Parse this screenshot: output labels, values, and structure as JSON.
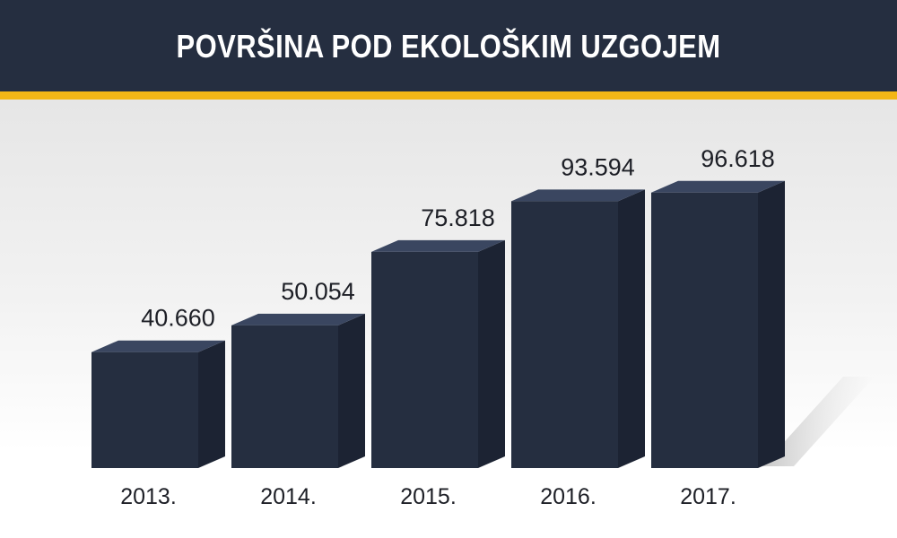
{
  "header": {
    "title": "POVRŠINA POD EKOLOŠKIM UZGOJEM"
  },
  "colors": {
    "header_bg": "#252e40",
    "accent_stripe": "#f3b616",
    "bar_front": "#252e40",
    "bar_top": "#3a4660",
    "bar_side": "#1c2333"
  },
  "chart_data": {
    "type": "bar",
    "title": "POVRŠINA POD EKOLOŠKIM UZGOJEM",
    "categories": [
      "2013.",
      "2014.",
      "2015.",
      "2016.",
      "2017."
    ],
    "values": [
      40660,
      50054,
      75818,
      93594,
      96618
    ],
    "value_labels": [
      "40.660",
      "50.054",
      "75.818",
      "93.594",
      "96.618"
    ],
    "xlabel": "",
    "ylabel": "",
    "ylim": [
      0,
      100000
    ],
    "grid": false,
    "legend": "none",
    "style": "3d"
  }
}
